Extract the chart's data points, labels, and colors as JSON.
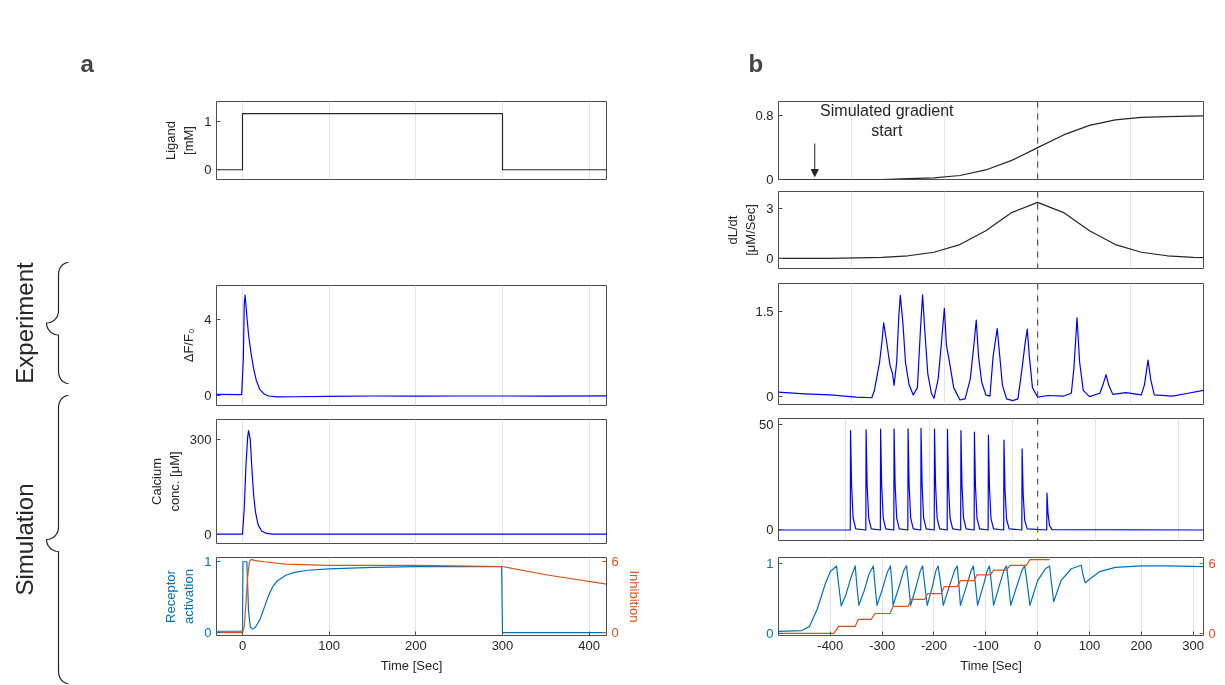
{
  "chart_data": [
    {
      "type": "line",
      "title": "a",
      "ylabel": "Ligand\n[mM]",
      "xlim": [
        -30,
        420
      ],
      "ylim": [
        -0.2,
        1.4
      ],
      "yticks": [
        0,
        1
      ],
      "xticks": [
        {
          "value": 0,
          "label": null
        },
        {
          "value": 100,
          "label": null
        },
        {
          "value": 200,
          "label": null
        },
        {
          "value": 300,
          "label": null
        },
        {
          "value": 400,
          "label": null
        }
      ],
      "grid": "x",
      "tick_labels": "y",
      "series": [
        {
          "color": "#262626",
          "x": [
            -30,
            0,
            0,
            300,
            300,
            420
          ],
          "values": [
            0,
            0,
            1.15,
            1.15,
            0,
            0
          ]
        }
      ]
    },
    {
      "type": "line",
      "ylabel": "ΔF/F₀",
      "annotations": [
        "Experiment"
      ],
      "xlim": [
        -30,
        420
      ],
      "ylim": [
        -0.5,
        5.8
      ],
      "yticks": [
        0,
        4
      ],
      "xticks": [
        {
          "value": 0,
          "label": null
        },
        {
          "value": 100,
          "label": null
        },
        {
          "value": 200,
          "label": null
        },
        {
          "value": 300,
          "label": null
        },
        {
          "value": 400,
          "label": null
        }
      ],
      "grid": "x",
      "tick_labels": "y",
      "series": [
        {
          "color": "#0000ff",
          "x": [
            -30,
            -1,
            1,
            2,
            3,
            5,
            7,
            10,
            13,
            16,
            20,
            25,
            30,
            40,
            60,
            100,
            150,
            200,
            250,
            300,
            350,
            420
          ],
          "values": [
            0.08,
            0.07,
            2.0,
            4.8,
            5.3,
            4.2,
            3.2,
            2.2,
            1.4,
            0.8,
            0.35,
            0.1,
            0.0,
            -0.05,
            -0.04,
            -0.02,
            0.0,
            -0.01,
            0.0,
            0.0,
            -0.01,
            0.01
          ]
        }
      ]
    },
    {
      "type": "line",
      "ylabel": "Calcium\nconc. [μM]",
      "xlim": [
        -30,
        420
      ],
      "ylim": [
        -30,
        365
      ],
      "yticks": [
        0,
        300
      ],
      "xticks": [
        {
          "value": 0,
          "label": null
        },
        {
          "value": 100,
          "label": null
        },
        {
          "value": 200,
          "label": null
        },
        {
          "value": 300,
          "label": null
        },
        {
          "value": 400,
          "label": null
        }
      ],
      "grid": "x",
      "tick_labels": "y",
      "series": [
        {
          "color": "#0000ff",
          "x": [
            -30,
            0,
            2,
            4,
            6,
            7,
            9,
            11,
            13,
            15,
            18,
            22,
            28,
            35,
            420
          ],
          "values": [
            0,
            0,
            80,
            220,
            310,
            330,
            300,
            200,
            120,
            70,
            30,
            10,
            2,
            0,
            0
          ]
        }
      ]
    },
    {
      "type": "line",
      "ylabel": "Receptor\nactivation",
      "y2label": "Inhibition",
      "annotations": [
        "Simulation"
      ],
      "xlabel": "Time [Sec]",
      "xlim": [
        -30,
        420
      ],
      "ylim": [
        -0.04,
        1.06
      ],
      "yticks": [
        0,
        1
      ],
      "y2lim": [
        -0.24,
        6.36
      ],
      "y2ticks": [
        0,
        6
      ],
      "xticks": [
        0,
        100,
        200,
        300,
        400
      ],
      "grid": "x",
      "series": [
        {
          "color": "#0072bd",
          "x": [
            -30,
            0,
            0.5,
            5,
            7,
            9,
            12,
            15,
            20,
            25,
            30,
            35,
            40,
            50,
            60,
            75,
            100,
            150,
            200,
            299,
            300,
            420
          ],
          "values": [
            0.02,
            0.02,
            1,
            1,
            0.3,
            0.08,
            0.05,
            0.08,
            0.18,
            0.35,
            0.52,
            0.65,
            0.73,
            0.81,
            0.85,
            0.88,
            0.9,
            0.92,
            0.93,
            0.93,
            0,
            0
          ]
        },
        {
          "color": "#d95319",
          "axis": "y2",
          "x": [
            -30,
            0,
            2,
            4,
            6,
            8,
            10,
            15,
            25,
            50,
            100,
            200,
            300,
            350,
            420
          ],
          "values": [
            0,
            0,
            0.5,
            2.5,
            4.8,
            6.0,
            6.2,
            6.1,
            6.0,
            5.8,
            5.7,
            5.7,
            5.6,
            4.9,
            4.1
          ]
        }
      ]
    },
    {
      "type": "line",
      "title": "b",
      "xlim": [
        -500,
        320
      ],
      "ylim": [
        0,
        0.98
      ],
      "yticks": [
        0,
        0.8
      ],
      "xticks": [
        {
          "value": -360,
          "label": null
        },
        {
          "value": -180,
          "label": null
        },
        {
          "value": 0,
          "label": null
        },
        {
          "value": 180,
          "label": null
        }
      ],
      "grid": "x",
      "tick_labels": "y",
      "annotations": [
        {
          "text": "Simulated gradient\nstart",
          "x": -430,
          "y": 0
        }
      ],
      "ref_lines": [
        {
          "axis": "x",
          "value": 0,
          "color": "#555555",
          "line_style": "dashed"
        }
      ],
      "series": [
        {
          "color": "#262626",
          "x": [
            -500,
            -400,
            -300,
            -250,
            -200,
            -150,
            -100,
            -50,
            0,
            50,
            100,
            150,
            200,
            250,
            320
          ],
          "values": [
            0,
            0,
            0,
            0.01,
            0.02,
            0.05,
            0.12,
            0.24,
            0.4,
            0.56,
            0.68,
            0.75,
            0.78,
            0.79,
            0.8
          ]
        }
      ]
    },
    {
      "type": "line",
      "ylabel": "dL/dt\n[μM/Sec]",
      "xlim": [
        -500,
        320
      ],
      "ylim": [
        -0.6,
        4
      ],
      "yticks": [
        0,
        3
      ],
      "xticks": [
        {
          "value": -360,
          "label": null
        },
        {
          "value": -180,
          "label": null
        },
        {
          "value": 0,
          "label": null
        },
        {
          "value": 180,
          "label": null
        }
      ],
      "grid": "x",
      "tick_labels": "y",
      "ref_lines": [
        {
          "axis": "x",
          "value": 0,
          "color": "#555555",
          "line_style": "dashed"
        }
      ],
      "series": [
        {
          "color": "#262626",
          "x": [
            -500,
            -400,
            -300,
            -250,
            -200,
            -150,
            -100,
            -50,
            0,
            50,
            100,
            150,
            200,
            250,
            300,
            320
          ],
          "values": [
            0,
            0.01,
            0.07,
            0.16,
            0.37,
            0.83,
            1.65,
            2.74,
            3.35,
            2.74,
            1.65,
            0.83,
            0.37,
            0.16,
            0.07,
            0.05
          ]
        }
      ]
    },
    {
      "type": "line",
      "xlim": [
        -500,
        320
      ],
      "ylim": [
        -0.15,
        2.0
      ],
      "yticks": [
        0,
        1.5
      ],
      "xticks": [
        {
          "value": -360,
          "label": null
        },
        {
          "value": -180,
          "label": null
        },
        {
          "value": 0,
          "label": null
        },
        {
          "value": 180,
          "label": null
        }
      ],
      "grid": "x",
      "tick_labels": "y",
      "ref_lines": [
        {
          "axis": "x",
          "value": 0,
          "color": "#555555",
          "line_style": "dashed"
        }
      ],
      "series": [
        {
          "color": "#0000ff",
          "x": [
            -500,
            -450,
            -400,
            -350,
            -320,
            -315,
            -305,
            -300,
            -297,
            -292,
            -285,
            -280,
            -277,
            -272,
            -268,
            -265,
            -260,
            -255,
            -248,
            -240,
            -232,
            -226,
            -222,
            -218,
            -212,
            -205,
            -200,
            -192,
            -186,
            -180,
            -176,
            -170,
            -162,
            -150,
            -140,
            -130,
            -122,
            -118.5,
            -114,
            -108,
            -100,
            -92,
            -86,
            -82,
            -78,
            -74,
            -68,
            -60,
            -48,
            -38,
            -30,
            -24,
            -20,
            -16,
            -10,
            0,
            20,
            50,
            65,
            70,
            76,
            81,
            88,
            100,
            120,
            126,
            132,
            137,
            145,
            170,
            200,
            206,
            213,
            218,
            225,
            260,
            290,
            320
          ],
          "values": [
            0.07,
            0.04,
            0.02,
            -0.02,
            -0.03,
            0.1,
            0.6,
            1.0,
            1.3,
            1.0,
            0.55,
            0.4,
            0.19,
            0.6,
            1.4,
            1.79,
            1.3,
            0.6,
            0.2,
            0.02,
            0.15,
            1.2,
            1.8,
            1.2,
            0.4,
            0.05,
            -0.04,
            0.3,
            0.9,
            1.56,
            0.9,
            0.6,
            0.15,
            -0.07,
            -0.05,
            0.3,
            1.0,
            1.35,
            0.7,
            0.25,
            0.02,
            0.0,
            0.7,
            0.95,
            1.2,
            0.8,
            0.2,
            -0.05,
            -0.08,
            -0.05,
            0.5,
            0.95,
            1.19,
            0.7,
            0.15,
            -0.02,
            0.01,
            0.0,
            0.05,
            0.5,
            1.39,
            0.6,
            0.1,
            -0.01,
            0.05,
            0.2,
            0.38,
            0.2,
            0.03,
            0.06,
            0.02,
            0.2,
            0.64,
            0.3,
            0.02,
            0.0,
            0.05,
            0.1
          ]
        }
      ]
    },
    {
      "type": "line",
      "xlim": [
        -500,
        320
      ],
      "ylim": [
        -5,
        53
      ],
      "yticks": [
        0,
        50
      ],
      "xticks": [
        {
          "value": -371,
          "label": null
        },
        {
          "value": -208,
          "label": null
        },
        {
          "value": -48,
          "label": null
        },
        {
          "value": 111,
          "label": null
        },
        {
          "value": 272,
          "label": null
        }
      ],
      "grid": "x",
      "tick_labels": "y",
      "ref_lines": [
        {
          "axis": "x",
          "value": 0,
          "color": "#555555",
          "line_style": "dashed"
        }
      ],
      "series": [
        {
          "color": "#0000ff",
          "x": [
            -500,
            -361.5,
            -361,
            -359,
            -356,
            -351,
            -331.5,
            -331,
            -329,
            -326,
            -321,
            -303.5,
            -303,
            -301,
            -298,
            -293,
            -277.5,
            -277,
            -275,
            -272,
            -267,
            -250.5,
            -250,
            -248,
            -245,
            -240,
            -225.5,
            -225,
            -223,
            -220,
            -215,
            -199.5,
            -199,
            -197,
            -194,
            -189,
            -174.5,
            -174,
            -172,
            -169,
            -164,
            -148.5,
            -148,
            -146,
            -143,
            -138,
            -122.5,
            -122,
            -120,
            -117,
            -112,
            -95.5,
            -95,
            -93,
            -90,
            -85,
            -65.5,
            -65,
            -63,
            -60,
            -55,
            -30.5,
            -30,
            -28,
            -25,
            -20,
            17.5,
            18,
            20,
            23,
            28,
            320
          ],
          "values": [
            0,
            0,
            47.3,
            21.3,
            5.7,
            0.5,
            0,
            47.6,
            21.4,
            5.7,
            0.5,
            0,
            48,
            21.6,
            5.8,
            0.5,
            0,
            48.1,
            21.6,
            5.8,
            0.5,
            0,
            48.1,
            21.6,
            5.8,
            0.5,
            0,
            48.3,
            21.7,
            5.8,
            0.5,
            0,
            48,
            21.6,
            5.8,
            0.5,
            0,
            47.8,
            21.5,
            5.7,
            0.5,
            0,
            47.2,
            21.2,
            5.7,
            0.5,
            0,
            46.5,
            20.9,
            5.6,
            0.5,
            0,
            45.1,
            20.3,
            5.4,
            0.5,
            0,
            42.7,
            19.2,
            5.1,
            0.5,
            0,
            38.6,
            17.4,
            4.6,
            0.5,
            0,
            17.5,
            7.9,
            2.1,
            0.2,
            0
          ]
        }
      ]
    },
    {
      "type": "line",
      "xlabel": "Time [Sec]",
      "xlim": [
        -500,
        320
      ],
      "ylim": [
        -0.03,
        1.08
      ],
      "yticks": [
        0,
        1
      ],
      "y2lim": [
        -0.18,
        6.48
      ],
      "y2ticks": [
        0,
        6
      ],
      "xticks": [
        -400,
        -300,
        -200,
        -100,
        0,
        100,
        200,
        300
      ],
      "grid": "x",
      "series": [
        {
          "color": "#0072bd",
          "x": [
            -500,
            -455,
            -440,
            -425,
            -410,
            -400,
            -388,
            -384,
            -379,
            -370,
            -360,
            -352,
            -349,
            -345,
            -335,
            -325,
            -317,
            -314,
            -310,
            -300,
            -290,
            -284,
            -281,
            -279,
            -268,
            -258,
            -253,
            -249,
            -245,
            -235,
            -226,
            -222,
            -218,
            -213,
            -203,
            -196,
            -192,
            -187,
            -182,
            -170,
            -160,
            -155,
            -152,
            -149,
            -137,
            -128,
            -124,
            -120,
            -116,
            -104,
            -97,
            -93,
            -89,
            -85,
            -73,
            -65,
            -60,
            -56,
            -52,
            -38,
            -30,
            -25,
            -20,
            -15,
            0,
            15,
            23,
            27,
            31,
            45,
            65,
            84,
            88,
            92,
            100,
            120,
            150,
            200,
            250,
            320
          ],
          "values": [
            0.03,
            0.04,
            0.1,
            0.35,
            0.7,
            0.88,
            0.96,
            0.7,
            0.39,
            0.55,
            0.8,
            0.96,
            0.7,
            0.4,
            0.6,
            0.85,
            0.96,
            0.7,
            0.4,
            0.62,
            0.87,
            0.96,
            0.7,
            0.4,
            0.65,
            0.9,
            0.96,
            0.7,
            0.4,
            0.65,
            0.9,
            0.96,
            0.7,
            0.4,
            0.67,
            0.9,
            0.96,
            0.7,
            0.4,
            0.68,
            0.9,
            0.96,
            0.7,
            0.4,
            0.68,
            0.9,
            0.96,
            0.7,
            0.4,
            0.7,
            0.9,
            0.96,
            0.7,
            0.4,
            0.7,
            0.9,
            0.96,
            0.7,
            0.4,
            0.72,
            0.9,
            0.96,
            0.7,
            0.4,
            0.75,
            0.92,
            0.96,
            0.7,
            0.45,
            0.75,
            0.92,
            0.97,
            0.82,
            0.72,
            0.77,
            0.88,
            0.94,
            0.96,
            0.96,
            0.95
          ]
        },
        {
          "color": "#d95319",
          "axis": "y2",
          "x": [
            -500,
            -393,
            -384,
            -352,
            -346,
            -321,
            -314,
            -285,
            -279,
            -250,
            -244,
            -218,
            -212,
            -186,
            -180,
            -155,
            -149,
            -123,
            -117,
            -91,
            -85,
            -60,
            -53,
            -22,
            -15,
            23
          ],
          "values": [
            0,
            0,
            0.6,
            0.6,
            1.2,
            1.2,
            1.7,
            1.7,
            2.3,
            2.3,
            2.9,
            2.9,
            3.4,
            3.4,
            4.0,
            4.0,
            4.5,
            4.5,
            5.0,
            5.0,
            5.4,
            5.4,
            5.8,
            5.8,
            6.3,
            6.3
          ]
        }
      ]
    }
  ]
}
